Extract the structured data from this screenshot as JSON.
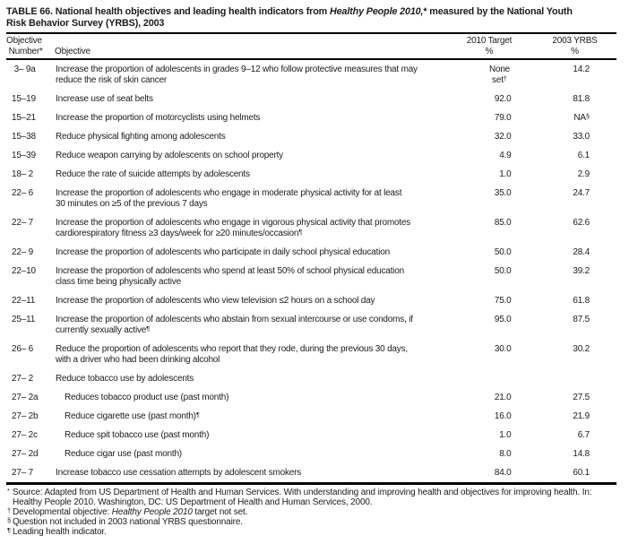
{
  "title": {
    "parts": [
      {
        "t": "TABLE 66. National health objectives and leading health indicators from "
      },
      {
        "t": "Healthy People 2010,",
        "i": true
      },
      {
        "t": "* measured by the National Youth\nRisk Behavior Survey (YRBS), 2003"
      }
    ]
  },
  "table": {
    "header": {
      "col1": "Objective\n Number*",
      "col2": "Objective",
      "col3": "2010 Target\n%",
      "col4": "2003 YRBS\n%"
    },
    "rows": [
      {
        "num": " 3– 9a",
        "text": "Increase the proportion of adolescents in grades 9–12 who follow protective measures that may\nreduce the risk of skin cancer",
        "target": "None set",
        "target_sup": "†",
        "target_wrap": true,
        "yrbs": "14.2"
      },
      {
        "num": "15–19",
        "text": "Increase use of seat belts",
        "target": "92.0",
        "yrbs": "81.8"
      },
      {
        "num": "15–21",
        "text": "Increase the proportion of motorcyclists using helmets",
        "target": "79.0",
        "yrbs": "NA",
        "yrbs_sup": "§"
      },
      {
        "num": "15–38",
        "text": "Reduce physical fighting among adolescents",
        "target": "32.0",
        "yrbs": "33.0"
      },
      {
        "num": "15–39",
        "text": "Reduce weapon carrying by adolescents on school property",
        "target": "4.9",
        "yrbs": "6.1"
      },
      {
        "num": "18– 2",
        "text": "Reduce the rate of suicide attempts by adolescents",
        "target": "1.0",
        "yrbs": "2.9"
      },
      {
        "num": "22– 6",
        "text": "Increase the proportion of adolescents who engage in moderate physical activity for at least\n30 minutes on ≥5 of the previous 7 days",
        "target": "35.0",
        "yrbs": "24.7"
      },
      {
        "num": "22– 7",
        "text": "Increase the proportion of adolescents who engage in vigorous physical activity that promotes\ncardiorespiratory fitness ≥3 days/week for ≥20 minutes/occasion",
        "text_sup": "¶",
        "target": "85.0",
        "yrbs": "62.6"
      },
      {
        "num": "22– 9",
        "text": "Increase the proportion of adolescents who participate in daily school physical education",
        "target": "50.0",
        "yrbs": "28.4"
      },
      {
        "num": "22–10",
        "text": "Increase the proportion of adolescents who spend at least 50% of school physical education\nclass time being physically active",
        "target": "50.0",
        "yrbs": "39.2"
      },
      {
        "num": "22–11",
        "text": "Increase the proportion of adolescents who view television ≤2 hours on a school day",
        "target": "75.0",
        "yrbs": "61.8"
      },
      {
        "num": "25–11",
        "text": "Increase the proportion of adolescents who abstain from sexual intercourse or use condoms, if\ncurrently sexually active",
        "text_sup": "¶",
        "target": "95.0",
        "yrbs": "87.5"
      },
      {
        "num": "26– 6",
        "text": "Reduce the proportion of adolescents who report that they rode, during the previous 30 days,\nwith a driver who had been drinking alcohol",
        "target": "30.0",
        "yrbs": "30.2"
      },
      {
        "num": "27– 2",
        "text": "Reduce tobacco use by adolescents",
        "target": "",
        "yrbs": ""
      },
      {
        "num": "27– 2a",
        "indent": true,
        "text": "Reduces tobacco product use (past month)",
        "target": "21.0",
        "yrbs": "27.5"
      },
      {
        "num": "27– 2b",
        "indent": true,
        "text": "Reduce cigarette use (past month)",
        "text_sup": "¶",
        "target": "16.0",
        "yrbs": "21.9"
      },
      {
        "num": "27– 2c",
        "indent": true,
        "text": "Reduce spit tobacco use (past month)",
        "target": "1.0",
        "yrbs": "6.7"
      },
      {
        "num": "27– 2d",
        "indent": true,
        "text": "Reduce cigar use (past month)",
        "target": "8.0",
        "yrbs": "14.8"
      },
      {
        "num": "27– 7",
        "text": "Increase tobacco use cessation attempts by adolescent smokers",
        "target": "84.0",
        "yrbs": "60.1"
      }
    ]
  },
  "footnotes": [
    {
      "marker": "*",
      "parts": [
        {
          "t": "Source: Adapted from US Department of Health and Human Services. With understanding and improving health and objectives for improving health. In:\nHealthy People 2010. Washington, DC: US Department of Health and Human Services, 2000."
        }
      ]
    },
    {
      "marker": "†",
      "parts": [
        {
          "t": "Developmental objective: "
        },
        {
          "t": "Healthy People 2010",
          "i": true
        },
        {
          "t": " target not set."
        }
      ]
    },
    {
      "marker": "§",
      "parts": [
        {
          "t": "Question not included in 2003 national YRBS questionnaire."
        }
      ]
    },
    {
      "marker": "¶",
      "parts": [
        {
          "t": "Leading health indicator."
        }
      ]
    }
  ]
}
